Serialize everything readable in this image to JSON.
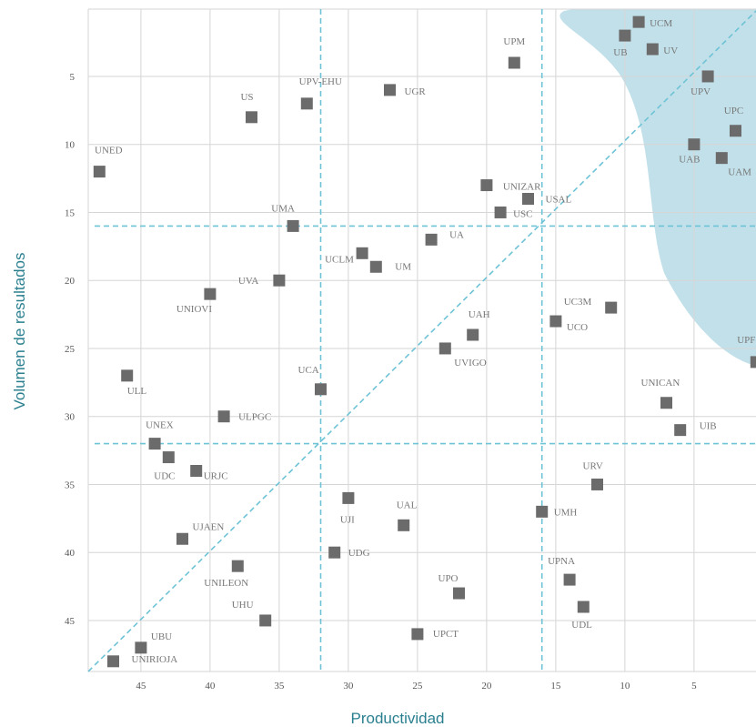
{
  "chart_data": {
    "type": "scatter",
    "title": "",
    "xlabel": "Productividad",
    "ylabel": "Volumen de resultados",
    "x_reversed": true,
    "y_reversed": true,
    "xlim": [
      49,
      0.5
    ],
    "ylim": [
      49,
      0
    ],
    "x_ticks": [
      45,
      40,
      35,
      30,
      25,
      20,
      15,
      10,
      5
    ],
    "y_ticks": [
      5,
      10,
      15,
      20,
      25,
      30,
      35,
      40,
      45
    ],
    "grid": true,
    "colors": {
      "grid": "#d6d6d6",
      "marker": "#6b6b6b",
      "reference_lines": "#6ec3d6",
      "highlight_region": "#b7dbe5",
      "axis_title": "#2a7f8f"
    },
    "reference_lines": {
      "x": [
        32,
        16
      ],
      "y": [
        16,
        32
      ],
      "diagonal": true
    },
    "highlight_region": "top-right",
    "points": [
      {
        "label": "UCM",
        "x": 9,
        "y": 1
      },
      {
        "label": "UB",
        "x": 10,
        "y": 2
      },
      {
        "label": "UV",
        "x": 8,
        "y": 3
      },
      {
        "label": "UPV",
        "x": 4,
        "y": 5
      },
      {
        "label": "UPC",
        "x": 2,
        "y": 9
      },
      {
        "label": "UAB",
        "x": 5,
        "y": 10
      },
      {
        "label": "UAM",
        "x": 3,
        "y": 11
      },
      {
        "label": "UPF",
        "x": 0.5,
        "y": 26
      },
      {
        "label": "UPM",
        "x": 18,
        "y": 4
      },
      {
        "label": "UGR",
        "x": 27,
        "y": 6
      },
      {
        "label": "UPV-EHU",
        "x": 33,
        "y": 7
      },
      {
        "label": "US",
        "x": 37,
        "y": 8
      },
      {
        "label": "UNED",
        "x": 48,
        "y": 12
      },
      {
        "label": "UNIZAR",
        "x": 20,
        "y": 13
      },
      {
        "label": "USAL",
        "x": 17,
        "y": 14
      },
      {
        "label": "USC",
        "x": 19,
        "y": 15
      },
      {
        "label": "UMA",
        "x": 34,
        "y": 16
      },
      {
        "label": "UA",
        "x": 24,
        "y": 17
      },
      {
        "label": "UCLM",
        "x": 29,
        "y": 18
      },
      {
        "label": "UM",
        "x": 28,
        "y": 19
      },
      {
        "label": "UVA",
        "x": 35,
        "y": 20
      },
      {
        "label": "UNIOVI",
        "x": 40,
        "y": 21
      },
      {
        "label": "UC3M",
        "x": 11,
        "y": 22
      },
      {
        "label": "UCO",
        "x": 15,
        "y": 23
      },
      {
        "label": "UAH",
        "x": 21,
        "y": 24
      },
      {
        "label": "UVIGO",
        "x": 23,
        "y": 25
      },
      {
        "label": "ULL",
        "x": 46,
        "y": 27
      },
      {
        "label": "UCA",
        "x": 32,
        "y": 28
      },
      {
        "label": "UNICAN",
        "x": 7,
        "y": 29
      },
      {
        "label": "ULPGC",
        "x": 39,
        "y": 30
      },
      {
        "label": "UIB",
        "x": 6,
        "y": 31
      },
      {
        "label": "UNEX",
        "x": 44,
        "y": 32
      },
      {
        "label": "UDC",
        "x": 43,
        "y": 33
      },
      {
        "label": "URJC",
        "x": 41,
        "y": 34
      },
      {
        "label": "URV",
        "x": 12,
        "y": 35
      },
      {
        "label": "UJI",
        "x": 30,
        "y": 36
      },
      {
        "label": "UMH",
        "x": 16,
        "y": 37
      },
      {
        "label": "UAL",
        "x": 26,
        "y": 38
      },
      {
        "label": "UJAEN",
        "x": 42,
        "y": 39
      },
      {
        "label": "UDG",
        "x": 31,
        "y": 40
      },
      {
        "label": "UNILEON",
        "x": 38,
        "y": 41
      },
      {
        "label": "UPNA",
        "x": 14,
        "y": 42
      },
      {
        "label": "UPO",
        "x": 22,
        "y": 43
      },
      {
        "label": "UDL",
        "x": 13,
        "y": 44
      },
      {
        "label": "UHU",
        "x": 36,
        "y": 45
      },
      {
        "label": "UPCT",
        "x": 25,
        "y": 46
      },
      {
        "label": "UBU",
        "x": 45,
        "y": 47
      },
      {
        "label": "UNIRIOJA",
        "x": 47,
        "y": 48
      }
    ]
  }
}
